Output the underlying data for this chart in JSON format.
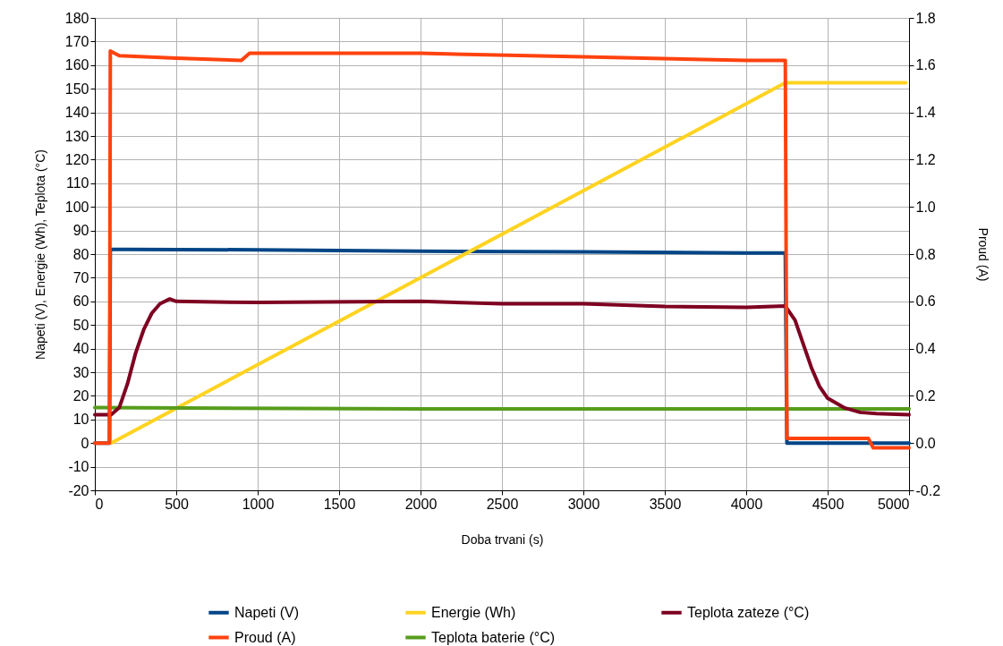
{
  "chart_data": {
    "type": "line",
    "xlabel": "Doba trvani (s)",
    "ylabel": "Napeti (V), Energie (Wh), Teplota (°C)",
    "y2label": "Proud (A)",
    "xlim": [
      0,
      5000
    ],
    "xticks": [
      0,
      500,
      1000,
      1500,
      2000,
      2500,
      3000,
      3500,
      4000,
      4500,
      5000
    ],
    "ylim": [
      -20,
      180
    ],
    "yticks": [
      -20,
      -10,
      0,
      10,
      20,
      30,
      40,
      50,
      60,
      70,
      80,
      90,
      100,
      110,
      120,
      130,
      140,
      150,
      160,
      170,
      180
    ],
    "y2lim": [
      -0.2,
      1.8
    ],
    "y2ticks": [
      -0.2,
      {
        "value": 0,
        "label": "0.0"
      },
      0.2,
      0.4,
      0.6,
      0.8,
      {
        "value": 1,
        "label": "1.0"
      },
      1.2,
      1.4,
      1.6,
      1.8
    ],
    "grid": true,
    "legend": "bottom",
    "marker": "none",
    "line_style": "solid",
    "series": [
      {
        "name": "Napeti (V)",
        "color": "#004586",
        "x": [
          0,
          90,
          95,
          200,
          1000,
          2000,
          3000,
          4000,
          4240,
          4250,
          5000
        ],
        "values": [
          0,
          0,
          82,
          82,
          81.8,
          81.2,
          80.9,
          80.5,
          80.5,
          0,
          0
        ]
      },
      {
        "name": "Proud (A)",
        "color": "#ff420e",
        "axis": "y2",
        "x": [
          0,
          90,
          95,
          150,
          500,
          900,
          950,
          2000,
          3000,
          4000,
          4240,
          4250,
          4750,
          4780,
          5000
        ],
        "values": [
          0,
          0,
          1.66,
          1.64,
          1.63,
          1.62,
          1.65,
          1.65,
          1.635,
          1.62,
          1.62,
          0.02,
          0.02,
          -0.02,
          -0.02
        ]
      },
      {
        "name": "Energie (Wh)",
        "color": "#ffd320",
        "x": [
          100,
          4240,
          4980
        ],
        "values": [
          0,
          152.5,
          152.5
        ]
      },
      {
        "name": "Teplota baterie (°C)",
        "color": "#579d1c",
        "x": [
          0,
          2000,
          5000
        ],
        "values": [
          15,
          14.5,
          14.5
        ]
      },
      {
        "name": "Teplota zateze (°C)",
        "color": "#7e0021",
        "x": [
          0,
          100,
          150,
          200,
          250,
          300,
          350,
          400,
          460,
          500,
          1000,
          2000,
          2500,
          3000,
          3500,
          4000,
          4240,
          4300,
          4350,
          4400,
          4450,
          4500,
          4600,
          4700,
          4800,
          5000
        ],
        "values": [
          12,
          12,
          15,
          25,
          38,
          48,
          55,
          59,
          61,
          60,
          59.5,
          60,
          59,
          59,
          57.8,
          57.5,
          58,
          52,
          42,
          32,
          24,
          19,
          15,
          13,
          12.5,
          12
        ]
      }
    ]
  }
}
